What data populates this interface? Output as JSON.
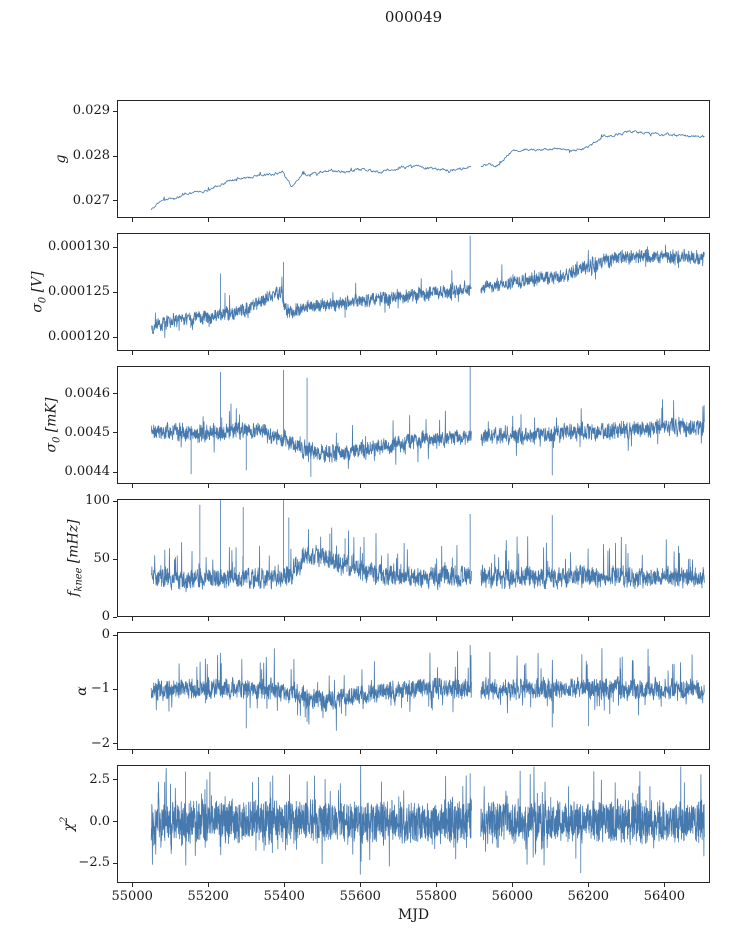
{
  "chart_data": {
    "type": "line",
    "title": "000049",
    "xlabel": "MJD",
    "xlim": [
      54960,
      56520
    ],
    "x_range": [
      55050,
      56505
    ],
    "x_ticks": [
      {
        "v": 55000,
        "label": "55000"
      },
      {
        "v": 55200,
        "label": "55200"
      },
      {
        "v": 55400,
        "label": "55400"
      },
      {
        "v": 55600,
        "label": "55600"
      },
      {
        "v": 55800,
        "label": "55800"
      },
      {
        "v": 56000,
        "label": "56000"
      },
      {
        "v": 56200,
        "label": "56200"
      },
      {
        "v": 56400,
        "label": "56400"
      }
    ],
    "gaps": [
      [
        55893,
        55917
      ]
    ],
    "line_color": "#4679ad",
    "frame_color": "#262626",
    "text_color": "#1a1a1a",
    "legend": "none",
    "grid": false,
    "panels": [
      {
        "id": "g",
        "ylabel": "g",
        "ylim": [
          0.02662,
          0.02925
        ],
        "yticks": [
          {
            "v": 0.027,
            "label": "0.027"
          },
          {
            "v": 0.028,
            "label": "0.028"
          },
          {
            "v": 0.029,
            "label": "0.029"
          }
        ],
        "n_points": 900,
        "seed": 11,
        "noise": 3.5e-05,
        "smooth": 0.72,
        "spike_prob": 0.02,
        "spike_scale": 1.6,
        "spike_sign": 0,
        "trend": [
          [
            55050,
            0.0268
          ],
          [
            55075,
            0.027
          ],
          [
            55110,
            0.02706
          ],
          [
            55150,
            0.02718
          ],
          [
            55200,
            0.02725
          ],
          [
            55250,
            0.02745
          ],
          [
            55280,
            0.02752
          ],
          [
            55320,
            0.02755
          ],
          [
            55360,
            0.02758
          ],
          [
            55395,
            0.02765
          ],
          [
            55420,
            0.02728
          ],
          [
            55445,
            0.02758
          ],
          [
            55480,
            0.0276
          ],
          [
            55520,
            0.02768
          ],
          [
            55560,
            0.02765
          ],
          [
            55600,
            0.0277
          ],
          [
            55650,
            0.02764
          ],
          [
            55700,
            0.02772
          ],
          [
            55750,
            0.0278
          ],
          [
            55790,
            0.0277
          ],
          [
            55830,
            0.02768
          ],
          [
            55870,
            0.02772
          ],
          [
            55900,
            0.02778
          ],
          [
            55930,
            0.0278
          ],
          [
            55960,
            0.02778
          ],
          [
            56000,
            0.0281
          ],
          [
            56040,
            0.02815
          ],
          [
            56080,
            0.02812
          ],
          [
            56120,
            0.02818
          ],
          [
            56160,
            0.02812
          ],
          [
            56200,
            0.02822
          ],
          [
            56240,
            0.02845
          ],
          [
            56280,
            0.02848
          ],
          [
            56320,
            0.02855
          ],
          [
            56360,
            0.0285
          ],
          [
            56400,
            0.02848
          ],
          [
            56440,
            0.02845
          ],
          [
            56505,
            0.02845
          ]
        ],
        "spikes": []
      },
      {
        "id": "sigma0-volts",
        "ylabel": "σ_{0} [V]",
        "ylim": [
          0.0001185,
          0.0001316
        ],
        "yticks": [
          {
            "v": 0.00012,
            "label": "0.000120"
          },
          {
            "v": 0.000125,
            "label": "0.000125"
          },
          {
            "v": 0.00013,
            "label": "0.000130"
          }
        ],
        "n_points": 2400,
        "seed": 22,
        "noise": 7e-07,
        "smooth": 0.3,
        "spike_prob": 0.02,
        "spike_scale": 2.2,
        "spike_sign": 0,
        "trend": [
          [
            55050,
            0.0001212
          ],
          [
            55100,
            0.0001218
          ],
          [
            55150,
            0.0001221
          ],
          [
            55200,
            0.0001223
          ],
          [
            55250,
            0.0001226
          ],
          [
            55300,
            0.000123
          ],
          [
            55340,
            0.000124
          ],
          [
            55370,
            0.0001247
          ],
          [
            55393,
            0.0001251
          ],
          [
            55402,
            0.0001229
          ],
          [
            55450,
            0.0001233
          ],
          [
            55500,
            0.0001236
          ],
          [
            55550,
            0.0001238
          ],
          [
            55600,
            0.0001241
          ],
          [
            55650,
            0.0001243
          ],
          [
            55700,
            0.0001245
          ],
          [
            55750,
            0.0001247
          ],
          [
            55800,
            0.000125
          ],
          [
            55850,
            0.0001252
          ],
          [
            55890,
            0.0001254
          ],
          [
            55920,
            0.0001256
          ],
          [
            55960,
            0.0001258
          ],
          [
            56000,
            0.0001261
          ],
          [
            56050,
            0.0001264
          ],
          [
            56100,
            0.0001267
          ],
          [
            56140,
            0.000127
          ],
          [
            56180,
            0.0001277
          ],
          [
            56220,
            0.0001282
          ],
          [
            56260,
            0.0001287
          ],
          [
            56300,
            0.000129
          ],
          [
            56340,
            0.0001291
          ],
          [
            56380,
            0.000129
          ],
          [
            56420,
            0.0001289
          ],
          [
            56505,
            0.0001288
          ]
        ],
        "spikes": [
          [
            55232,
            0.0001271
          ],
          [
            55398,
            0.0001284
          ],
          [
            55889,
            0.0001313
          ],
          [
            56105,
            0.0001271
          ],
          [
            55560,
            0.0001222
          ]
        ]
      },
      {
        "id": "sigma0-millikelvin",
        "ylabel": "σ_{0} [mK]",
        "ylim": [
          0.00437,
          0.00467
        ],
        "yticks": [
          {
            "v": 0.0044,
            "label": "0.0044"
          },
          {
            "v": 0.0045,
            "label": "0.0045"
          },
          {
            "v": 0.0046,
            "label": "0.0046"
          }
        ],
        "n_points": 2400,
        "seed": 33,
        "noise": 2e-05,
        "smooth": 0.3,
        "spike_prob": 0.025,
        "spike_scale": 2.0,
        "spike_sign": 0,
        "trend": [
          [
            55050,
            0.0045
          ],
          [
            55120,
            0.004502
          ],
          [
            55200,
            0.004498
          ],
          [
            55260,
            0.004505
          ],
          [
            55320,
            0.004508
          ],
          [
            55380,
            0.00449
          ],
          [
            55420,
            0.004478
          ],
          [
            55460,
            0.004452
          ],
          [
            55500,
            0.004448
          ],
          [
            55560,
            0.004452
          ],
          [
            55620,
            0.00446
          ],
          [
            55680,
            0.004468
          ],
          [
            55740,
            0.004478
          ],
          [
            55800,
            0.004482
          ],
          [
            55860,
            0.004488
          ],
          [
            55920,
            0.004488
          ],
          [
            55980,
            0.004495
          ],
          [
            56040,
            0.004492
          ],
          [
            56100,
            0.004496
          ],
          [
            56160,
            0.004502
          ],
          [
            56220,
            0.004505
          ],
          [
            56280,
            0.004508
          ],
          [
            56340,
            0.00451
          ],
          [
            56400,
            0.004515
          ],
          [
            56505,
            0.004512
          ]
        ],
        "spikes": [
          [
            55232,
            0.004655
          ],
          [
            55398,
            0.00466
          ],
          [
            55889,
            0.00468
          ],
          [
            55460,
            0.00464
          ],
          [
            55155,
            0.004395
          ],
          [
            55470,
            0.004388
          ],
          [
            56105,
            0.004392
          ],
          [
            55300,
            0.004405
          ]
        ]
      },
      {
        "id": "f-knee",
        "ylabel": "f_{knee} [mHz]",
        "ylim": [
          0,
          102
        ],
        "yticks": [
          {
            "v": 0,
            "label": "0"
          },
          {
            "v": 50,
            "label": "50"
          },
          {
            "v": 100,
            "label": "100"
          }
        ],
        "n_points": 2400,
        "seed": 44,
        "noise": 8,
        "smooth": 0.25,
        "clamp_min": 19,
        "spike_prob": 0.05,
        "spike_scale": 2.4,
        "spike_sign": 1,
        "trend": [
          [
            55050,
            34
          ],
          [
            55120,
            32
          ],
          [
            55200,
            33
          ],
          [
            55280,
            33
          ],
          [
            55360,
            34
          ],
          [
            55420,
            36
          ],
          [
            55450,
            52
          ],
          [
            55480,
            55
          ],
          [
            55510,
            50
          ],
          [
            55550,
            45
          ],
          [
            55600,
            40
          ],
          [
            55650,
            37
          ],
          [
            55700,
            35
          ],
          [
            55760,
            34
          ],
          [
            55820,
            34
          ],
          [
            55890,
            35
          ],
          [
            55920,
            35
          ],
          [
            55980,
            34
          ],
          [
            56040,
            35
          ],
          [
            56100,
            34
          ],
          [
            56160,
            35
          ],
          [
            56220,
            34
          ],
          [
            56280,
            35
          ],
          [
            56340,
            34
          ],
          [
            56400,
            35
          ],
          [
            56505,
            34
          ]
        ],
        "spikes": [
          [
            55178,
            97
          ],
          [
            55232,
            101
          ],
          [
            55292,
            95
          ],
          [
            55398,
            101
          ],
          [
            55412,
            86
          ],
          [
            55889,
            89
          ],
          [
            56105,
            88
          ],
          [
            55520,
            72
          ],
          [
            55560,
            68
          ]
        ]
      },
      {
        "id": "alpha",
        "ylabel": "α",
        "ylim": [
          -2.12,
          0.06
        ],
        "yticks": [
          {
            "v": -2,
            "label": "−2"
          },
          {
            "v": -1,
            "label": "−1"
          },
          {
            "v": 0,
            "label": "0"
          }
        ],
        "n_points": 2400,
        "seed": 55,
        "noise": 0.17,
        "smooth": 0.25,
        "spike_prob": 0.05,
        "spike_scale": 2.4,
        "spike_sign": 0,
        "trend": [
          [
            55050,
            -1
          ],
          [
            55150,
            -1
          ],
          [
            55250,
            -0.98
          ],
          [
            55350,
            -1.02
          ],
          [
            55420,
            -1.05
          ],
          [
            55470,
            -1.18
          ],
          [
            55520,
            -1.22
          ],
          [
            55570,
            -1.15
          ],
          [
            55620,
            -1.08
          ],
          [
            55700,
            -1
          ],
          [
            55800,
            -0.98
          ],
          [
            55900,
            -1
          ],
          [
            56000,
            -1
          ],
          [
            56100,
            -1
          ],
          [
            56200,
            -0.98
          ],
          [
            56300,
            -1
          ],
          [
            56400,
            -1
          ],
          [
            56505,
            -1
          ]
        ],
        "spikes": [
          [
            55889,
            -0.18
          ],
          [
            55300,
            -1.72
          ],
          [
            56200,
            -1.68
          ],
          [
            55460,
            -1.6
          ],
          [
            56105,
            -1.7
          ]
        ]
      },
      {
        "id": "chi-squared",
        "ylabel": "χ^{2}",
        "ylim": [
          -3.7,
          3.4
        ],
        "yticks": [
          {
            "v": -2.5,
            "label": "−2.5"
          },
          {
            "v": 0,
            "label": "0.0"
          },
          {
            "v": 2.5,
            "label": "2.5"
          }
        ],
        "n_points": 2800,
        "seed": 66,
        "noise": 1.05,
        "smooth": 0.05,
        "spike_prob": 0.06,
        "spike_scale": 1.6,
        "spike_sign": 0,
        "trend": [
          [
            55050,
            0
          ],
          [
            56505,
            0
          ]
        ],
        "spikes": [
          [
            55889,
            2.9
          ],
          [
            55140,
            3.0
          ],
          [
            56180,
            -3.1
          ],
          [
            55600,
            -3.2
          ]
        ]
      }
    ]
  }
}
